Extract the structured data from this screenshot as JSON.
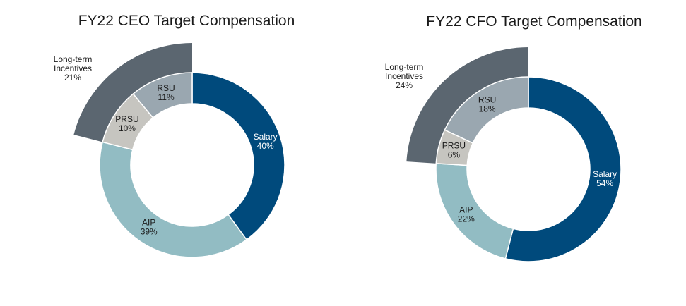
{
  "chart_data": [
    {
      "type": "donut",
      "title": "FY22 CEO Target Compensation",
      "slices": [
        {
          "name": "Salary",
          "value": 40,
          "label": "40%",
          "color": "#004a7c",
          "text_color": "#ffffff"
        },
        {
          "name": "AIP",
          "value": 39,
          "label": "39%",
          "color": "#92bcc3",
          "text_color": "#1a1a1a"
        },
        {
          "name": "PRSU",
          "value": 10,
          "label": "10%",
          "color": "#c6c5c0",
          "text_color": "#1a1a1a"
        },
        {
          "name": "RSU",
          "value": 11,
          "label": "11%",
          "color": "#9aa7b0",
          "text_color": "#1a1a1a"
        }
      ],
      "outer_group": {
        "name_lines": [
          "Long-term",
          "Incentives"
        ],
        "value": 21,
        "label": "21%",
        "color": "#5b6670",
        "text_color": "#1a1a1a"
      }
    },
    {
      "type": "donut",
      "title": "FY22 CFO Target Compensation",
      "slices": [
        {
          "name": "Salary",
          "value": 54,
          "label": "54%",
          "color": "#004a7c",
          "text_color": "#ffffff"
        },
        {
          "name": "AIP",
          "value": 22,
          "label": "22%",
          "color": "#92bcc3",
          "text_color": "#1a1a1a"
        },
        {
          "name": "PRSU",
          "value": 6,
          "label": "6%",
          "color": "#c6c5c0",
          "text_color": "#1a1a1a"
        },
        {
          "name": "RSU",
          "value": 18,
          "label": "18%",
          "color": "#9aa7b0",
          "text_color": "#1a1a1a"
        }
      ],
      "outer_group": {
        "name_lines": [
          "Long-term",
          "Incentives"
        ],
        "value": 24,
        "label": "24%",
        "color": "#5b6670",
        "text_color": "#1a1a1a"
      }
    }
  ]
}
